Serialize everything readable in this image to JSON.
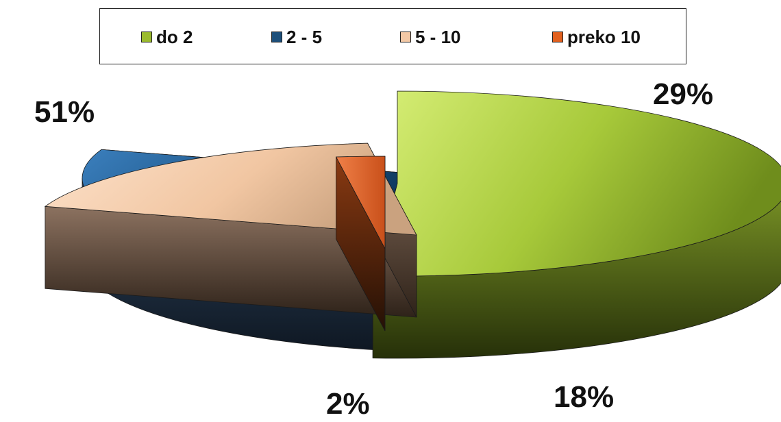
{
  "chart_data": {
    "type": "pie",
    "style": "3d-exploded",
    "legend_position": "top",
    "series": [
      {
        "name": "do 2",
        "value": 51,
        "label": "51%",
        "color": "#9bbb2f"
      },
      {
        "name": "2 - 5",
        "value": 29,
        "label": "29%",
        "color": "#1d4f7a"
      },
      {
        "name": "5 - 10",
        "value": 18,
        "label": "18%",
        "color": "#f3c9a6"
      },
      {
        "name": "preko 10",
        "value": 2,
        "label": "2%",
        "color": "#e2611f"
      }
    ]
  }
}
